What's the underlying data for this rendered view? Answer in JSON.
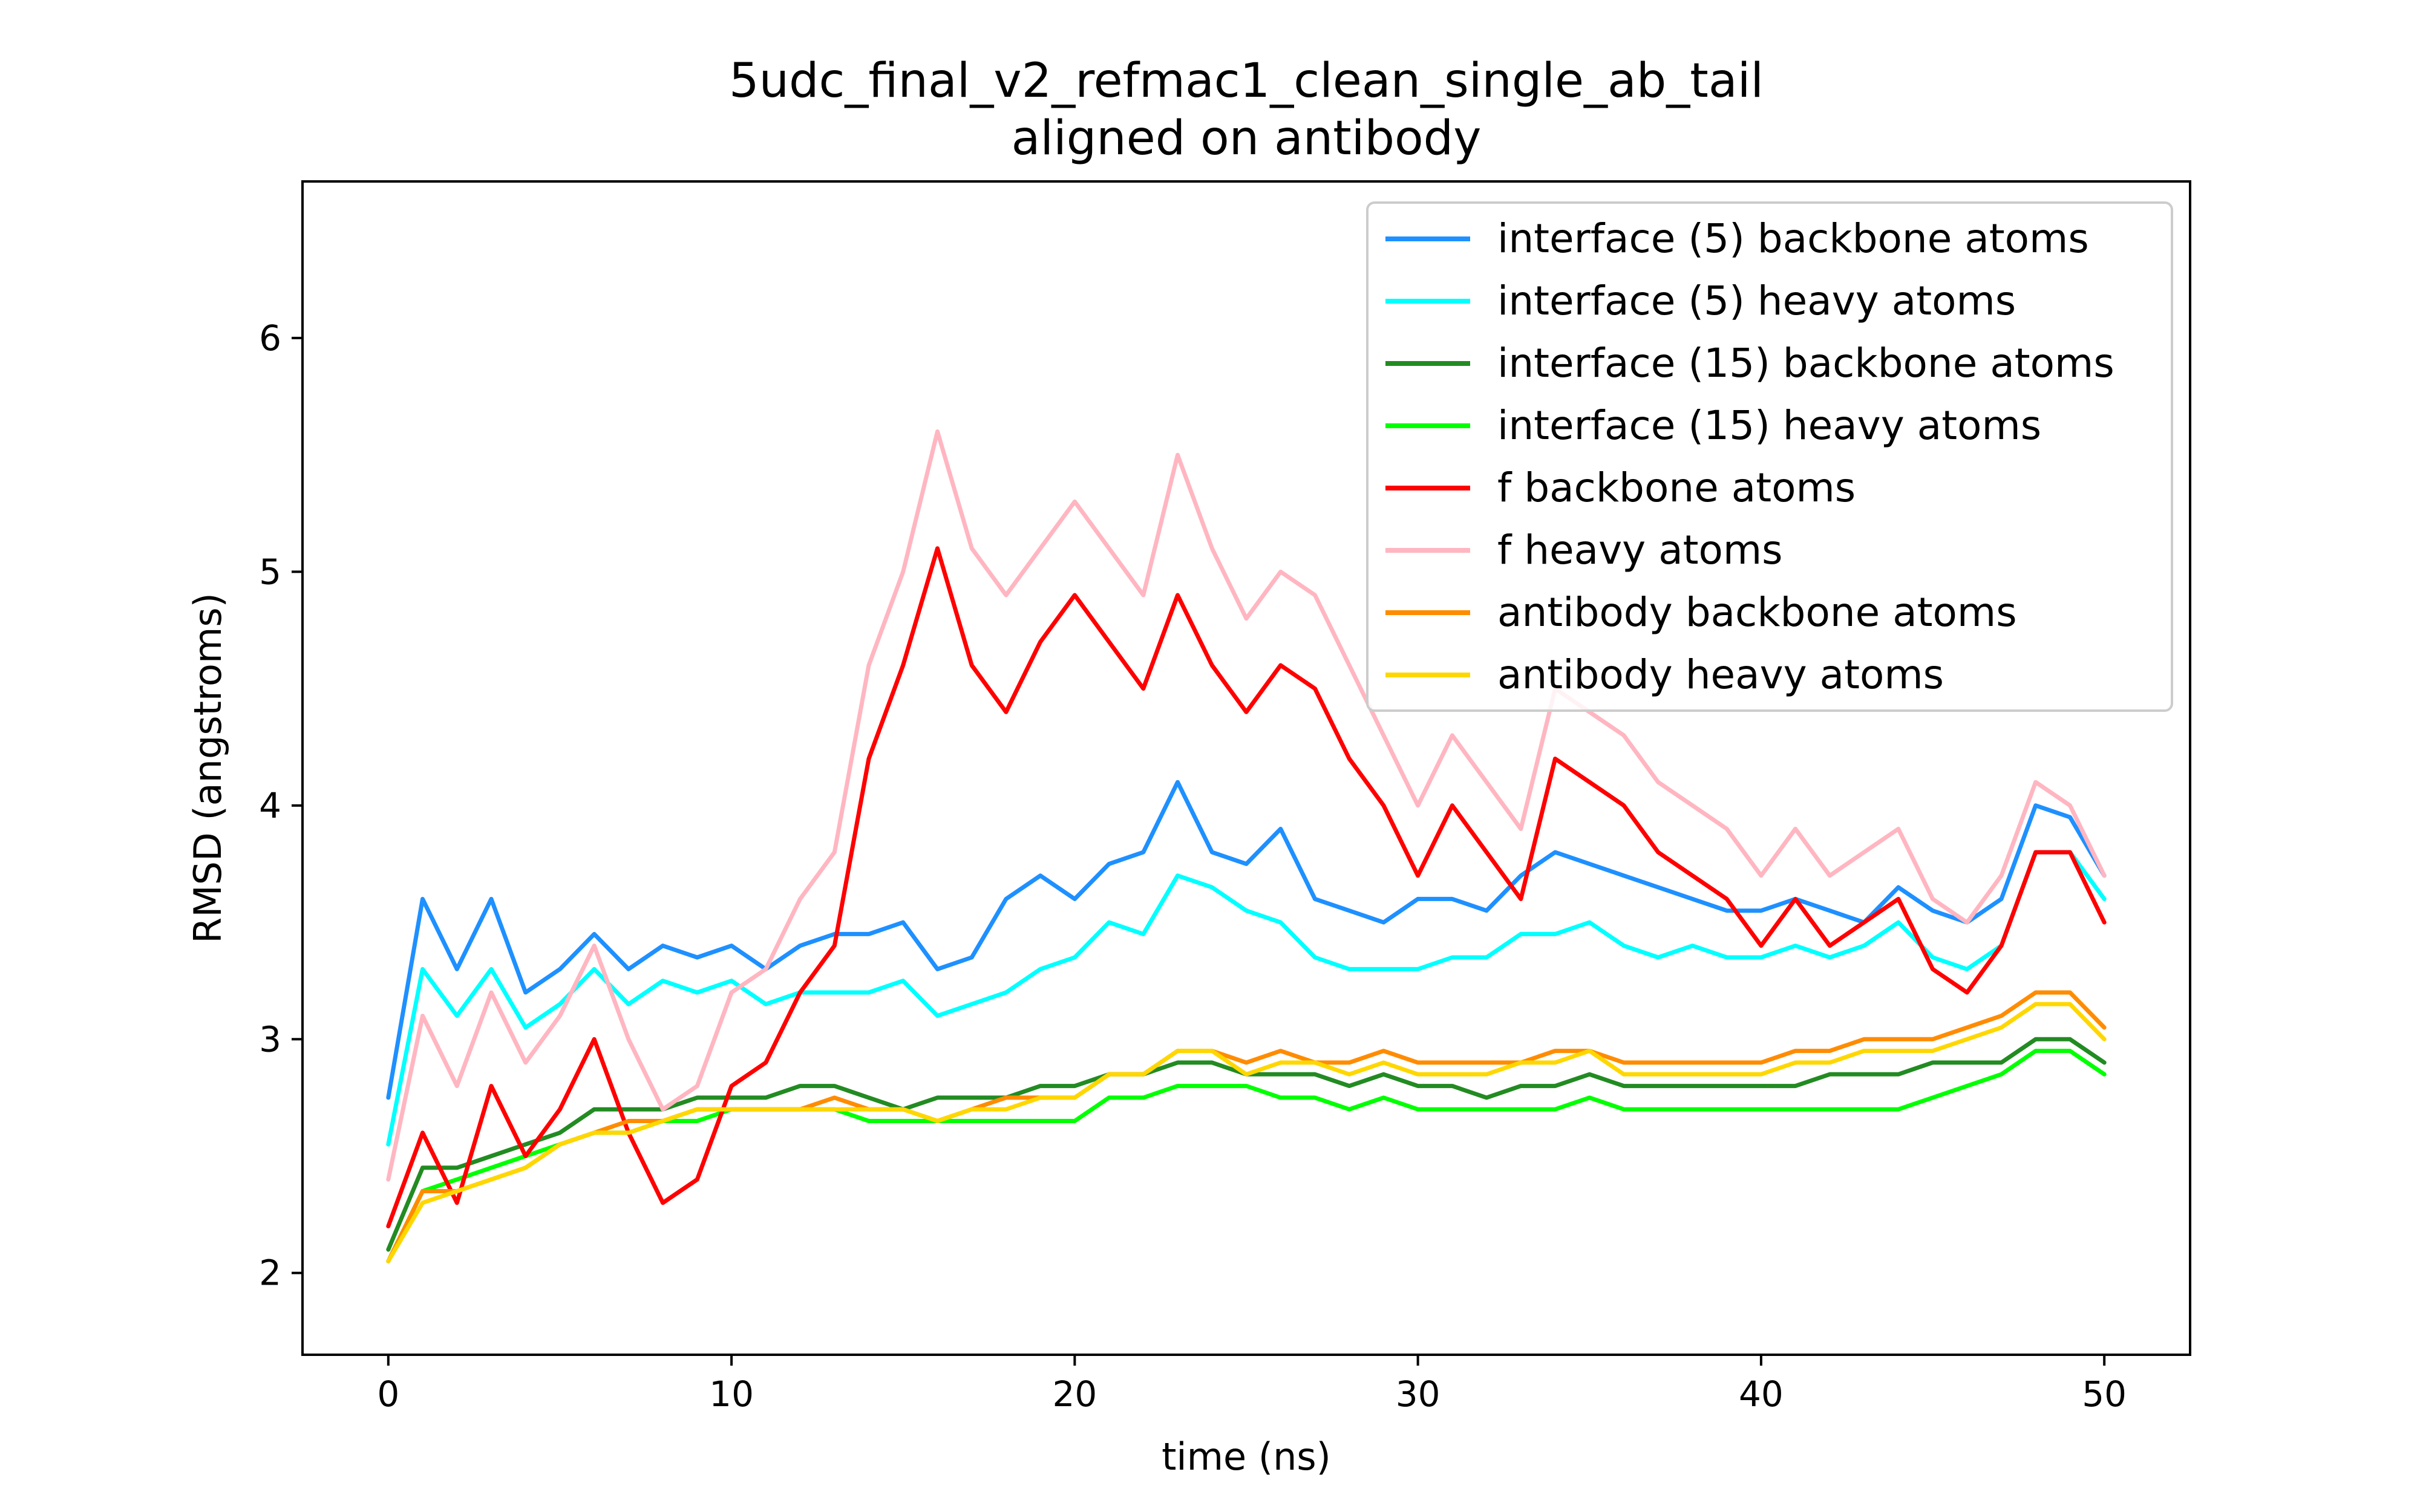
{
  "chart_data": {
    "type": "line",
    "title": "5udc_final_v2_refmac1_clean_single_ab_tail",
    "subtitle": "aligned on antibody",
    "xlabel": "time (ns)",
    "ylabel": "RMSD (angstroms)",
    "xlim": [
      -2.5,
      52.5
    ],
    "ylim": [
      1.65,
      6.67
    ],
    "xticks": [
      0,
      10,
      20,
      30,
      40,
      50
    ],
    "yticks": [
      2,
      3,
      4,
      5,
      6
    ],
    "grid": false,
    "legend_position": "top-right",
    "x": [
      0,
      1,
      2,
      3,
      4,
      5,
      6,
      7,
      8,
      9,
      10,
      11,
      12,
      13,
      14,
      15,
      16,
      17,
      18,
      19,
      20,
      21,
      22,
      23,
      24,
      25,
      26,
      27,
      28,
      29,
      30,
      31,
      32,
      33,
      34,
      35,
      36,
      37,
      38,
      39,
      40,
      41,
      42,
      43,
      44,
      45,
      46,
      47,
      48,
      49,
      50
    ],
    "series": [
      {
        "name": "interface (5) backbone atoms",
        "color": "#1e90ff",
        "values": [
          2.75,
          3.6,
          3.3,
          3.6,
          3.2,
          3.3,
          3.45,
          3.3,
          3.4,
          3.35,
          3.4,
          3.3,
          3.4,
          3.45,
          3.45,
          3.5,
          3.3,
          3.35,
          3.6,
          3.7,
          3.6,
          3.75,
          3.8,
          4.1,
          3.8,
          3.75,
          3.9,
          3.6,
          3.55,
          3.5,
          3.6,
          3.6,
          3.55,
          3.7,
          3.8,
          3.75,
          3.7,
          3.65,
          3.6,
          3.55,
          3.55,
          3.6,
          3.55,
          3.5,
          3.65,
          3.55,
          3.5,
          3.6,
          4.0,
          3.95,
          3.7
        ]
      },
      {
        "name": "interface (5) heavy atoms",
        "color": "#00ffff",
        "values": [
          2.55,
          3.3,
          3.1,
          3.3,
          3.05,
          3.15,
          3.3,
          3.15,
          3.25,
          3.2,
          3.25,
          3.15,
          3.2,
          3.2,
          3.2,
          3.25,
          3.1,
          3.15,
          3.2,
          3.3,
          3.35,
          3.5,
          3.45,
          3.7,
          3.65,
          3.55,
          3.5,
          3.35,
          3.3,
          3.3,
          3.3,
          3.35,
          3.35,
          3.45,
          3.45,
          3.5,
          3.4,
          3.35,
          3.4,
          3.35,
          3.35,
          3.4,
          3.35,
          3.4,
          3.5,
          3.35,
          3.3,
          3.4,
          3.8,
          3.8,
          3.6
        ]
      },
      {
        "name": "interface (15) backbone atoms",
        "color": "#228b22",
        "values": [
          2.1,
          2.45,
          2.45,
          2.5,
          2.55,
          2.6,
          2.7,
          2.7,
          2.7,
          2.75,
          2.75,
          2.75,
          2.8,
          2.8,
          2.75,
          2.7,
          2.75,
          2.75,
          2.75,
          2.8,
          2.8,
          2.85,
          2.85,
          2.9,
          2.9,
          2.85,
          2.85,
          2.85,
          2.8,
          2.85,
          2.8,
          2.8,
          2.75,
          2.8,
          2.8,
          2.85,
          2.8,
          2.8,
          2.8,
          2.8,
          2.8,
          2.8,
          2.85,
          2.85,
          2.85,
          2.9,
          2.9,
          2.9,
          3.0,
          3.0,
          2.9
        ]
      },
      {
        "name": "interface (15) heavy atoms",
        "color": "#00ff00",
        "values": [
          2.05,
          2.35,
          2.4,
          2.45,
          2.5,
          2.55,
          2.6,
          2.6,
          2.65,
          2.65,
          2.7,
          2.7,
          2.7,
          2.7,
          2.65,
          2.65,
          2.65,
          2.65,
          2.65,
          2.65,
          2.65,
          2.75,
          2.75,
          2.8,
          2.8,
          2.8,
          2.75,
          2.75,
          2.7,
          2.75,
          2.7,
          2.7,
          2.7,
          2.7,
          2.7,
          2.75,
          2.7,
          2.7,
          2.7,
          2.7,
          2.7,
          2.7,
          2.7,
          2.7,
          2.7,
          2.75,
          2.8,
          2.85,
          2.95,
          2.95,
          2.85
        ]
      },
      {
        "name": "f backbone atoms",
        "color": "#ff0000",
        "values": [
          2.2,
          2.6,
          2.3,
          2.8,
          2.5,
          2.7,
          3.0,
          2.6,
          2.3,
          2.4,
          2.8,
          2.9,
          3.2,
          3.4,
          4.2,
          4.6,
          5.1,
          4.6,
          4.4,
          4.7,
          4.9,
          4.7,
          4.5,
          4.9,
          4.6,
          4.4,
          4.6,
          4.5,
          4.2,
          4.0,
          3.7,
          4.0,
          3.8,
          3.6,
          4.2,
          4.1,
          4.0,
          3.8,
          3.7,
          3.6,
          3.4,
          3.6,
          3.4,
          3.5,
          3.6,
          3.3,
          3.2,
          3.4,
          3.8,
          3.8,
          3.5
        ]
      },
      {
        "name": "f heavy atoms",
        "color": "#ffb6c1",
        "values": [
          2.4,
          3.1,
          2.8,
          3.2,
          2.9,
          3.1,
          3.4,
          3.0,
          2.7,
          2.8,
          3.2,
          3.3,
          3.6,
          3.8,
          4.6,
          5.0,
          5.6,
          5.1,
          4.9,
          5.1,
          5.3,
          5.1,
          4.9,
          5.5,
          5.1,
          4.8,
          5.0,
          4.9,
          4.6,
          4.3,
          4.0,
          4.3,
          4.1,
          3.9,
          4.5,
          4.4,
          4.3,
          4.1,
          4.0,
          3.9,
          3.7,
          3.9,
          3.7,
          3.8,
          3.9,
          3.6,
          3.5,
          3.7,
          4.1,
          4.0,
          3.7
        ]
      },
      {
        "name": "antibody backbone atoms",
        "color": "#ff8c00",
        "values": [
          2.05,
          2.35,
          2.35,
          2.4,
          2.45,
          2.55,
          2.6,
          2.65,
          2.65,
          2.7,
          2.7,
          2.7,
          2.7,
          2.75,
          2.7,
          2.7,
          2.65,
          2.7,
          2.75,
          2.75,
          2.75,
          2.85,
          2.85,
          2.95,
          2.95,
          2.9,
          2.95,
          2.9,
          2.9,
          2.95,
          2.9,
          2.9,
          2.9,
          2.9,
          2.95,
          2.95,
          2.9,
          2.9,
          2.9,
          2.9,
          2.9,
          2.95,
          2.95,
          3.0,
          3.0,
          3.0,
          3.05,
          3.1,
          3.2,
          3.2,
          3.05
        ]
      },
      {
        "name": "antibody heavy atoms",
        "color": "#ffd700",
        "values": [
          2.05,
          2.3,
          2.35,
          2.4,
          2.45,
          2.55,
          2.6,
          2.6,
          2.65,
          2.7,
          2.7,
          2.7,
          2.7,
          2.7,
          2.7,
          2.7,
          2.65,
          2.7,
          2.7,
          2.75,
          2.75,
          2.85,
          2.85,
          2.95,
          2.95,
          2.85,
          2.9,
          2.9,
          2.85,
          2.9,
          2.85,
          2.85,
          2.85,
          2.9,
          2.9,
          2.95,
          2.85,
          2.85,
          2.85,
          2.85,
          2.85,
          2.9,
          2.9,
          2.95,
          2.95,
          2.95,
          3.0,
          3.05,
          3.15,
          3.15,
          3.0
        ]
      }
    ]
  }
}
